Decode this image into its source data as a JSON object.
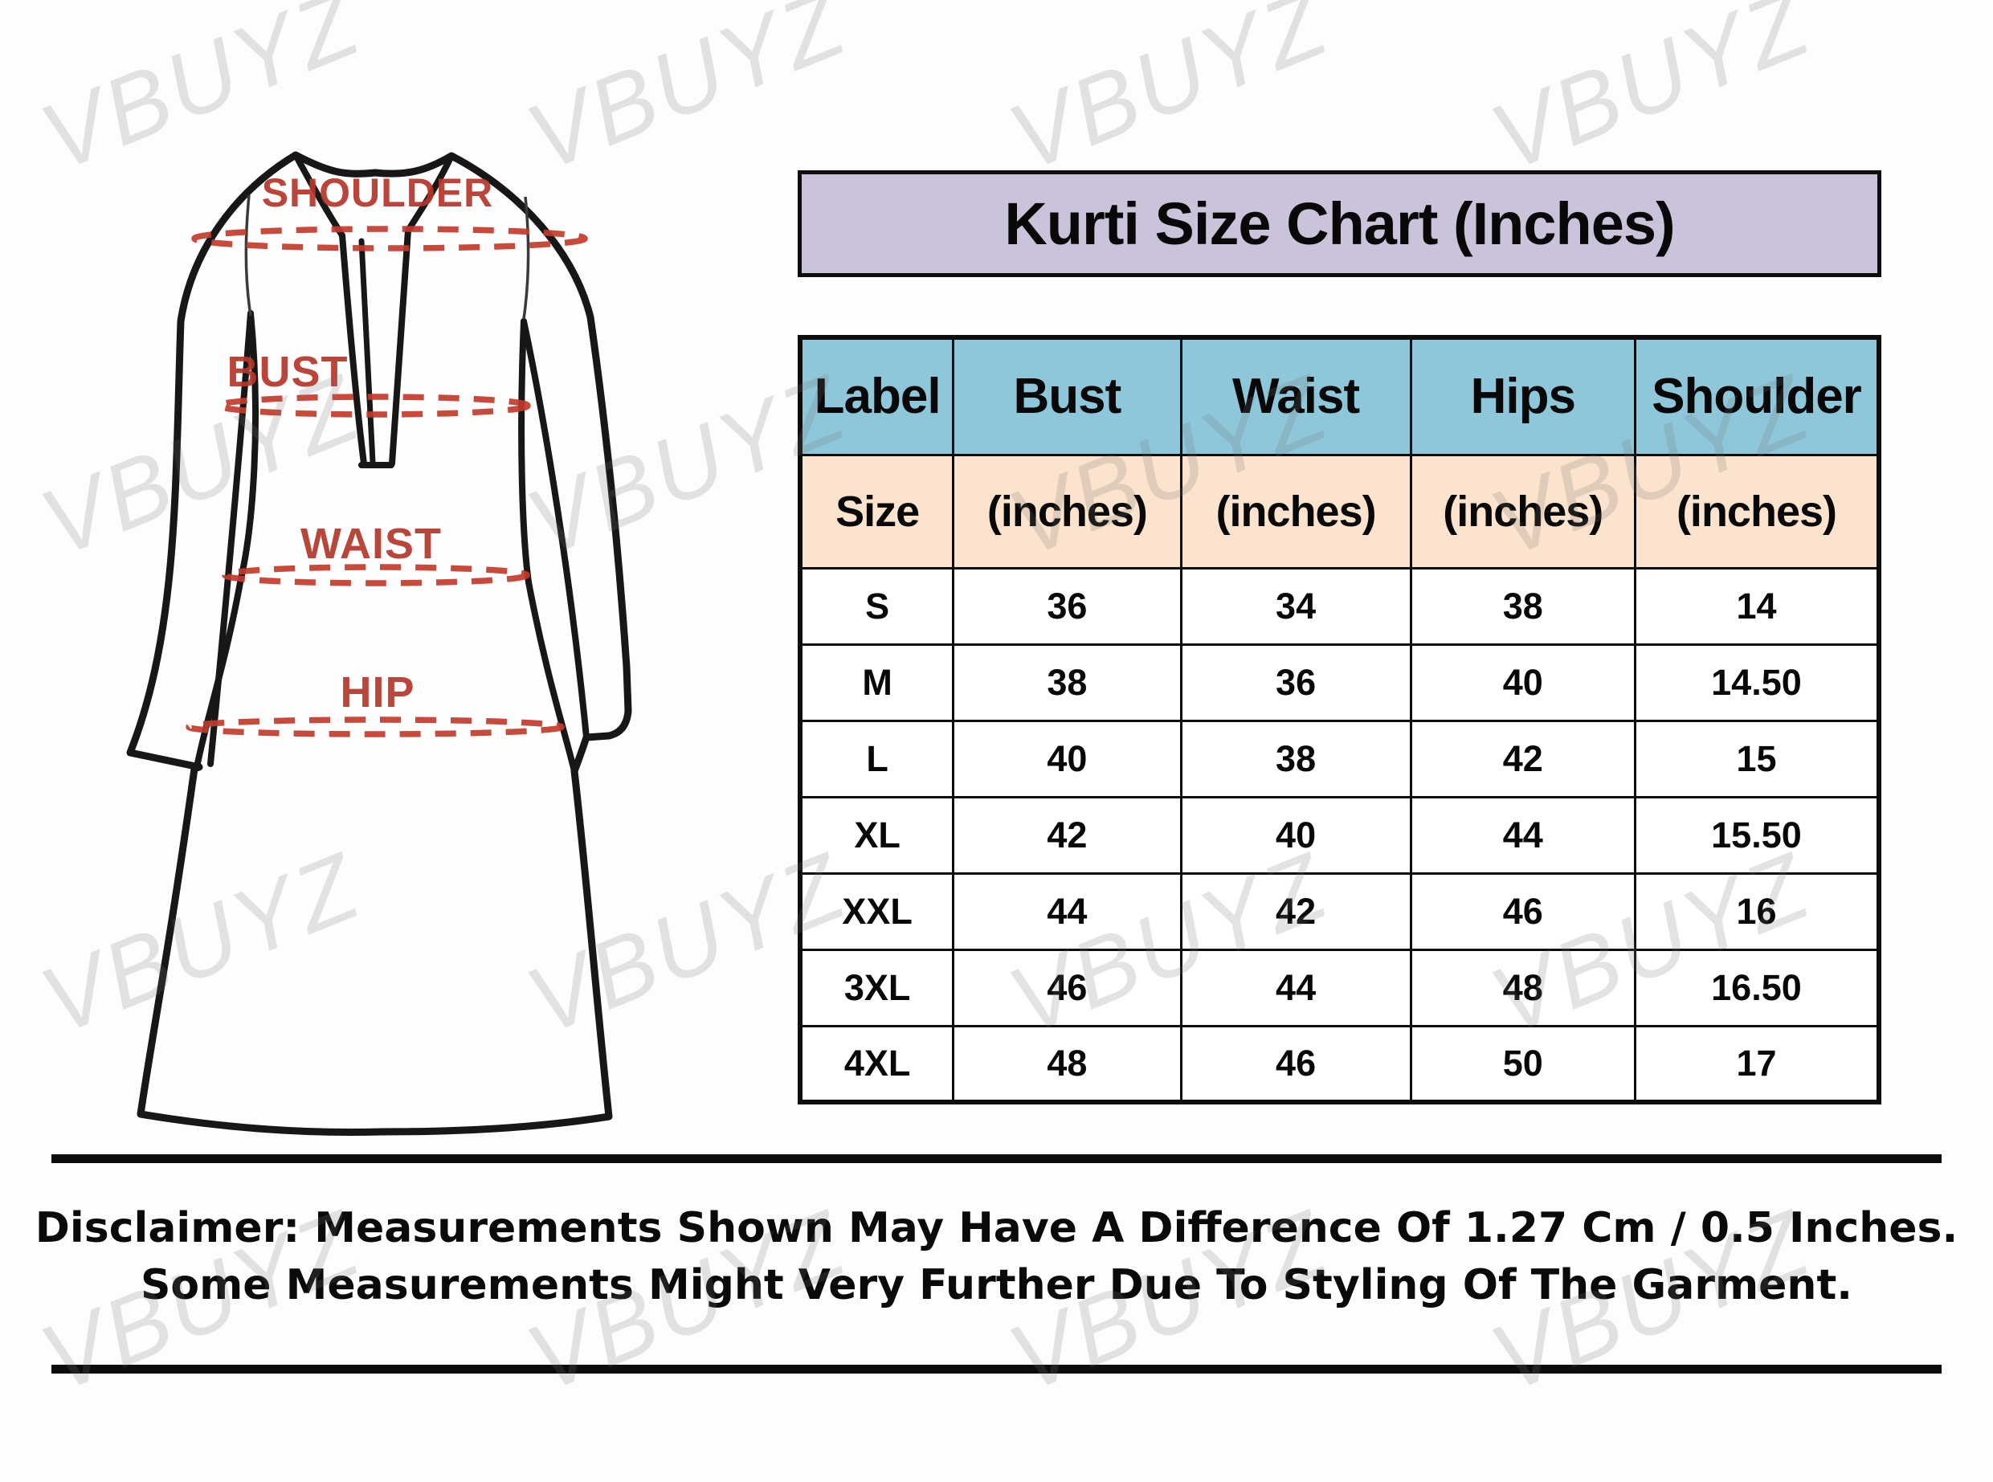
{
  "title": "Kurti Size Chart (Inches)",
  "watermark": {
    "text": "VBUYZ"
  },
  "garment_diagram": {
    "shoulder_label": "SHOULDER",
    "bust_label": "BUST",
    "waist_label": "WAIST",
    "hip_label": "HIP"
  },
  "size_table": {
    "header": [
      "Label",
      "Bust",
      "Waist",
      "Hips",
      "Shoulder"
    ],
    "subheader": [
      "Size",
      "(inches)",
      "(inches)",
      "(inches)",
      "(inches)"
    ],
    "rows": [
      [
        "S",
        "36",
        "34",
        "38",
        "14"
      ],
      [
        "M",
        "38",
        "36",
        "40",
        "14.50"
      ],
      [
        "L",
        "40",
        "38",
        "42",
        "15"
      ],
      [
        "XL",
        "42",
        "40",
        "44",
        "15.50"
      ],
      [
        "XXL",
        "44",
        "42",
        "46",
        "16"
      ],
      [
        "3XL",
        "46",
        "44",
        "48",
        "16.50"
      ],
      [
        "4XL",
        "48",
        "46",
        "50",
        "17"
      ]
    ]
  },
  "disclaimer": {
    "line1": "Disclaimer: Measurements Shown May Have A Difference Of 1.27 Cm / 0.5 Inches.",
    "line2": "Some Measurements Might Very Further Due To Styling Of The Garment."
  },
  "colors": {
    "title_bg": "#cbc3da",
    "header_bg": "#8fc7da",
    "subheader_bg": "#fbe3cd",
    "measure_red": "#b5372b",
    "dash_red": "#c33b2c",
    "ink": "#0d0d0d"
  },
  "chart_data": {
    "type": "table",
    "title": "Kurti Size Chart (Inches)",
    "columns": [
      "Label (Size)",
      "Bust (inches)",
      "Waist (inches)",
      "Hips (inches)",
      "Shoulder (inches)"
    ],
    "rows": [
      [
        "S",
        36,
        34,
        38,
        14
      ],
      [
        "M",
        38,
        36,
        40,
        14.5
      ],
      [
        "L",
        40,
        38,
        42,
        15
      ],
      [
        "XL",
        42,
        40,
        44,
        15.5
      ],
      [
        "XXL",
        44,
        42,
        46,
        16
      ],
      [
        "3XL",
        46,
        44,
        48,
        16.5
      ],
      [
        "4XL",
        48,
        46,
        50,
        17
      ]
    ],
    "notes": "Measurement points marked on garment: SHOULDER, BUST, WAIST, HIP"
  }
}
